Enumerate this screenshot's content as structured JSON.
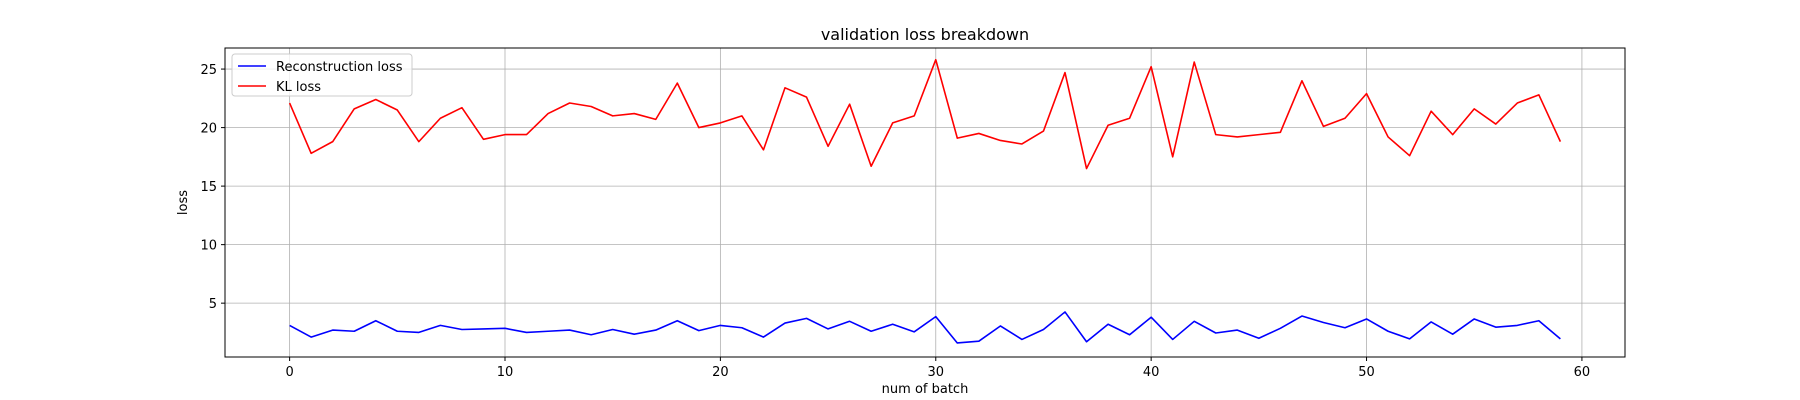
{
  "chart_data": {
    "type": "line",
    "title": "validation loss breakdown",
    "xlabel": "num of batch",
    "ylabel": "loss",
    "xlim": [
      -3,
      62
    ],
    "ylim": [
      0.4,
      26.8
    ],
    "xticks": [
      0,
      10,
      20,
      30,
      40,
      50,
      60
    ],
    "yticks": [
      5,
      10,
      15,
      20,
      25
    ],
    "grid": true,
    "legend_position": "upper-left",
    "x": [
      0,
      1,
      2,
      3,
      4,
      5,
      6,
      7,
      8,
      9,
      10,
      11,
      12,
      13,
      14,
      15,
      16,
      17,
      18,
      19,
      20,
      21,
      22,
      23,
      24,
      25,
      26,
      27,
      28,
      29,
      30,
      31,
      32,
      33,
      34,
      35,
      36,
      37,
      38,
      39,
      40,
      41,
      42,
      43,
      44,
      45,
      46,
      47,
      48,
      49,
      50,
      51,
      52,
      53,
      54,
      55,
      56,
      57,
      58,
      59
    ],
    "series": [
      {
        "name": "Reconstruction loss",
        "color": "#0000ff",
        "values": [
          3.1,
          2.1,
          2.7,
          2.6,
          3.5,
          2.6,
          2.5,
          3.1,
          2.75,
          2.8,
          2.85,
          2.5,
          2.6,
          2.7,
          2.3,
          2.75,
          2.35,
          2.7,
          3.5,
          2.65,
          3.1,
          2.9,
          2.1,
          3.3,
          3.7,
          2.8,
          3.45,
          2.6,
          3.2,
          2.55,
          3.85,
          1.6,
          1.75,
          3.05,
          1.9,
          2.75,
          4.25,
          1.7,
          3.2,
          2.3,
          3.8,
          1.9,
          3.45,
          2.45,
          2.7,
          2.0,
          2.85,
          3.9,
          3.35,
          2.9,
          3.65,
          2.6,
          1.95,
          3.4,
          2.35,
          3.65,
          2.95,
          3.1,
          3.5,
          1.95
        ]
      },
      {
        "name": "KL loss",
        "color": "#ff0000",
        "values": [
          22.1,
          17.8,
          18.8,
          21.6,
          22.4,
          21.5,
          18.8,
          20.8,
          21.7,
          19.0,
          19.4,
          19.4,
          21.2,
          22.1,
          21.8,
          21.0,
          21.2,
          20.7,
          23.8,
          20.0,
          20.4,
          21.0,
          18.1,
          23.4,
          22.6,
          18.4,
          22.0,
          16.7,
          20.4,
          21.0,
          25.8,
          19.1,
          19.5,
          18.9,
          18.6,
          19.7,
          24.7,
          16.5,
          20.2,
          20.8,
          25.2,
          17.5,
          25.6,
          19.4,
          19.2,
          19.4,
          19.6,
          24.0,
          20.1,
          20.8,
          22.9,
          19.2,
          17.6,
          21.4,
          19.4,
          21.6,
          20.3,
          22.1,
          22.8,
          18.8
        ]
      }
    ]
  }
}
